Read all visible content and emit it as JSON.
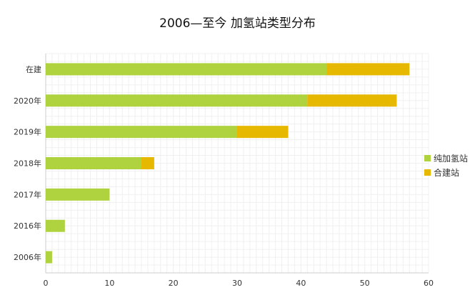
{
  "chart_data": {
    "type": "bar",
    "orientation": "horizontal",
    "stacked": true,
    "title": "2006—至今 加氢站类型分布",
    "categories": [
      "在建",
      "2020年",
      "2019年",
      "2018年",
      "2017年",
      "2016年",
      "2006年"
    ],
    "series": [
      {
        "name": "纯加氢站",
        "values": [
          44,
          41,
          30,
          15,
          10,
          3,
          1
        ],
        "color": "#aed33f"
      },
      {
        "name": "合建站",
        "values": [
          13,
          14,
          8,
          2,
          0,
          0,
          0
        ],
        "color": "#e6b800"
      }
    ],
    "xlim": [
      0,
      60
    ],
    "xticks": [
      0,
      10,
      20,
      30,
      40,
      50,
      60
    ],
    "xlabel": "",
    "ylabel": "",
    "grid": true,
    "legend_position": "right"
  }
}
